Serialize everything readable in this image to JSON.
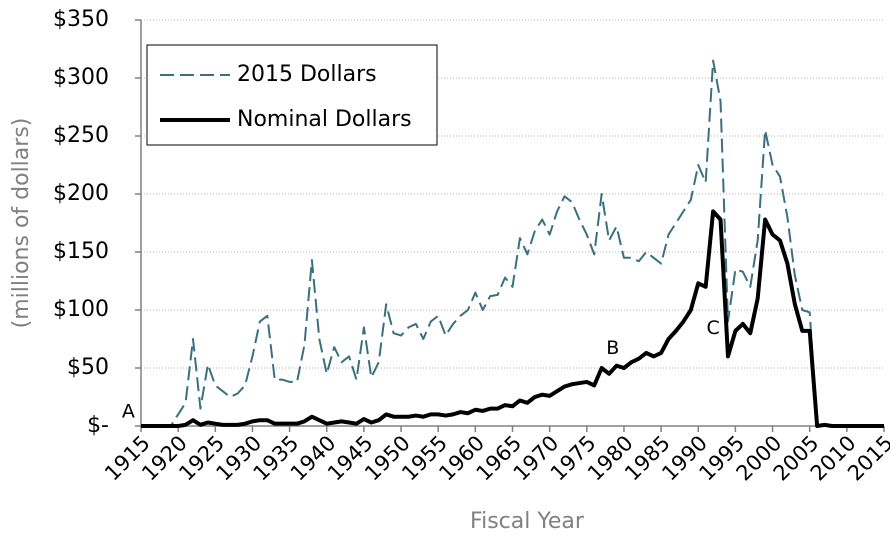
{
  "chart_data": {
    "type": "line",
    "x_label": "Fiscal Year",
    "y_label": "(millions of dollars)",
    "x": [
      1915,
      1916,
      1917,
      1918,
      1919,
      1920,
      1921,
      1922,
      1923,
      1924,
      1925,
      1926,
      1927,
      1928,
      1929,
      1930,
      1931,
      1932,
      1933,
      1934,
      1935,
      1936,
      1937,
      1938,
      1939,
      1940,
      1941,
      1942,
      1943,
      1944,
      1945,
      1946,
      1947,
      1948,
      1949,
      1950,
      1951,
      1952,
      1953,
      1954,
      1955,
      1956,
      1957,
      1958,
      1959,
      1960,
      1961,
      1962,
      1963,
      1964,
      1965,
      1966,
      1967,
      1968,
      1969,
      1970,
      1971,
      1972,
      1973,
      1974,
      1975,
      1976,
      1977,
      1978,
      1979,
      1980,
      1981,
      1982,
      1983,
      1984,
      1985,
      1986,
      1987,
      1988,
      1989,
      1990,
      1991,
      1992,
      1993,
      1994,
      1995,
      1996,
      1997,
      1998,
      1999,
      2000,
      2001,
      2002,
      2003,
      2004,
      2005,
      2006,
      2007,
      2008,
      2009,
      2010,
      2011,
      2012,
      2013,
      2014,
      2015
    ],
    "series": [
      {
        "name": "2015 Dollars",
        "color": "#3a6f80",
        "dashed": true,
        "values": [
          0,
          0,
          0,
          0,
          0,
          10,
          20,
          75,
          15,
          53,
          35,
          30,
          25,
          28,
          35,
          60,
          90,
          95,
          40,
          40,
          38,
          38,
          70,
          143,
          75,
          45,
          68,
          55,
          60,
          40,
          85,
          42,
          55,
          105,
          80,
          78,
          85,
          88,
          75,
          90,
          95,
          78,
          88,
          95,
          100,
          115,
          100,
          112,
          113,
          128,
          120,
          162,
          148,
          168,
          178,
          165,
          185,
          198,
          193,
          178,
          165,
          148,
          200,
          160,
          172,
          145,
          145,
          142,
          150,
          145,
          140,
          165,
          175,
          185,
          195,
          225,
          210,
          315,
          280,
          90,
          135,
          133,
          120,
          160,
          255,
          225,
          215,
          180,
          130,
          100,
          98,
          0,
          0,
          0,
          0,
          0,
          0,
          0,
          0,
          0,
          0
        ]
      },
      {
        "name": "Nominal Dollars",
        "color": "#000000",
        "dashed": false,
        "values": [
          0,
          0,
          0,
          0,
          0,
          0,
          1,
          5,
          1,
          3,
          2,
          1,
          1,
          1,
          2,
          4,
          5,
          5,
          2,
          2,
          2,
          2,
          4,
          8,
          5,
          2,
          3,
          4,
          3,
          2,
          6,
          3,
          5,
          10,
          8,
          8,
          8,
          9,
          8,
          10,
          10,
          9,
          10,
          12,
          11,
          14,
          13,
          15,
          15,
          18,
          17,
          22,
          20,
          25,
          27,
          26,
          30,
          34,
          36,
          37,
          38,
          35,
          50,
          45,
          52,
          50,
          55,
          58,
          63,
          60,
          63,
          75,
          82,
          90,
          100,
          123,
          120,
          185,
          178,
          60,
          82,
          88,
          80,
          110,
          178,
          165,
          160,
          140,
          105,
          82,
          82,
          0,
          1,
          0,
          0,
          0,
          0,
          0,
          0,
          0,
          0
        ]
      }
    ],
    "xlim": [
      1915,
      2015
    ],
    "xticks": [
      1915,
      1920,
      1925,
      1930,
      1935,
      1940,
      1945,
      1950,
      1955,
      1960,
      1965,
      1970,
      1975,
      1980,
      1985,
      1990,
      1995,
      2000,
      2005,
      2010,
      2015
    ],
    "ylim": [
      0,
      350
    ],
    "yticks": [
      {
        "value": 0,
        "label": "$-"
      },
      {
        "value": 50,
        "label": "$50"
      },
      {
        "value": 100,
        "label": "$100"
      },
      {
        "value": 150,
        "label": "$150"
      },
      {
        "value": 200,
        "label": "$200"
      },
      {
        "value": 250,
        "label": "$250"
      },
      {
        "value": 300,
        "label": "$300"
      },
      {
        "value": 350,
        "label": "$350"
      }
    ],
    "grid": true,
    "legend": "upper left",
    "annotations": [
      {
        "text": "A",
        "x": 1913.3,
        "y": 12
      },
      {
        "text": "B",
        "x": 1978.5,
        "y": 67
      },
      {
        "text": "C",
        "x": 1992,
        "y": 84
      }
    ]
  }
}
